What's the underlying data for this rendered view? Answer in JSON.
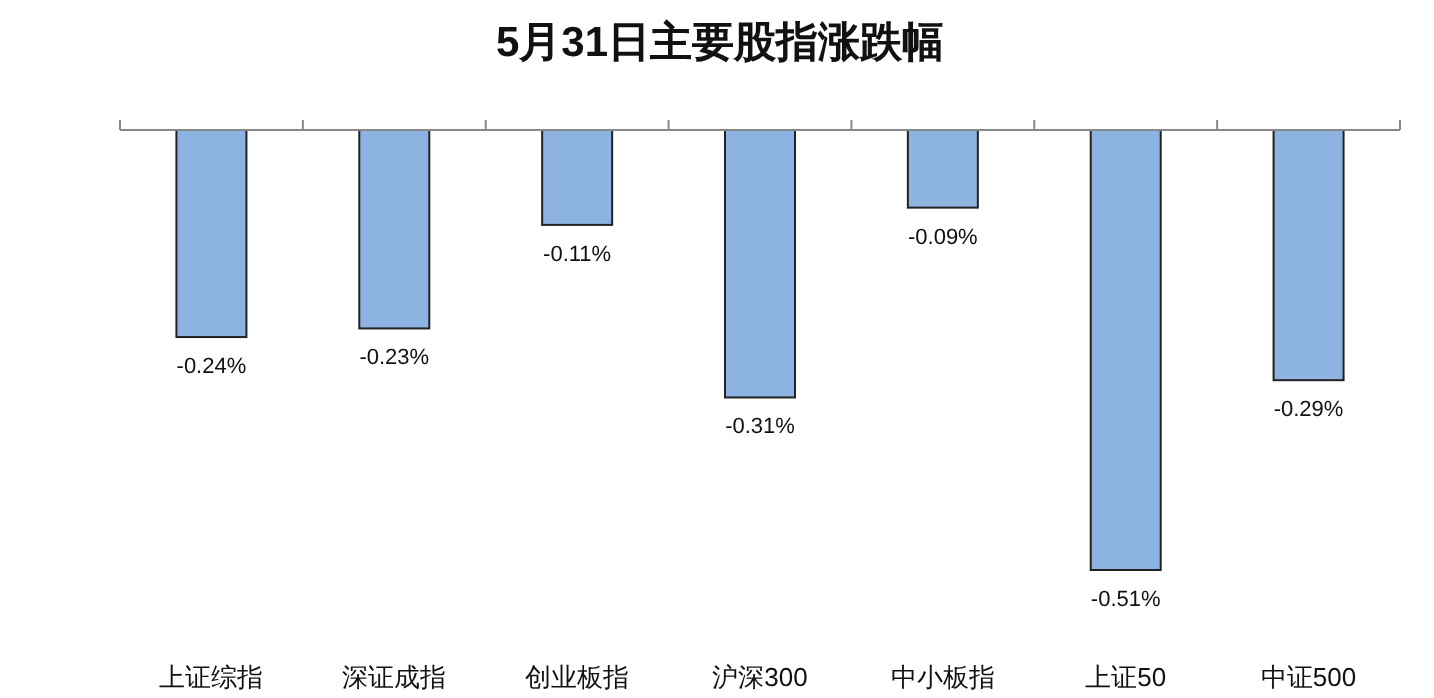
{
  "chart_data": {
    "type": "bar",
    "title": "5月31日主要股指涨跌幅",
    "categories": [
      "上证综指",
      "深证成指",
      "创业板指",
      "沪深300",
      "中小板指",
      "上证50",
      "中证500"
    ],
    "values": [
      -0.24,
      -0.23,
      -0.11,
      -0.31,
      -0.09,
      -0.51,
      -0.29
    ],
    "value_labels": [
      "-0.24%",
      "-0.23%",
      "-0.11%",
      "-0.31%",
      "-0.09%",
      "-0.51%",
      "-0.29%"
    ],
    "color": "#8db3e2"
  }
}
